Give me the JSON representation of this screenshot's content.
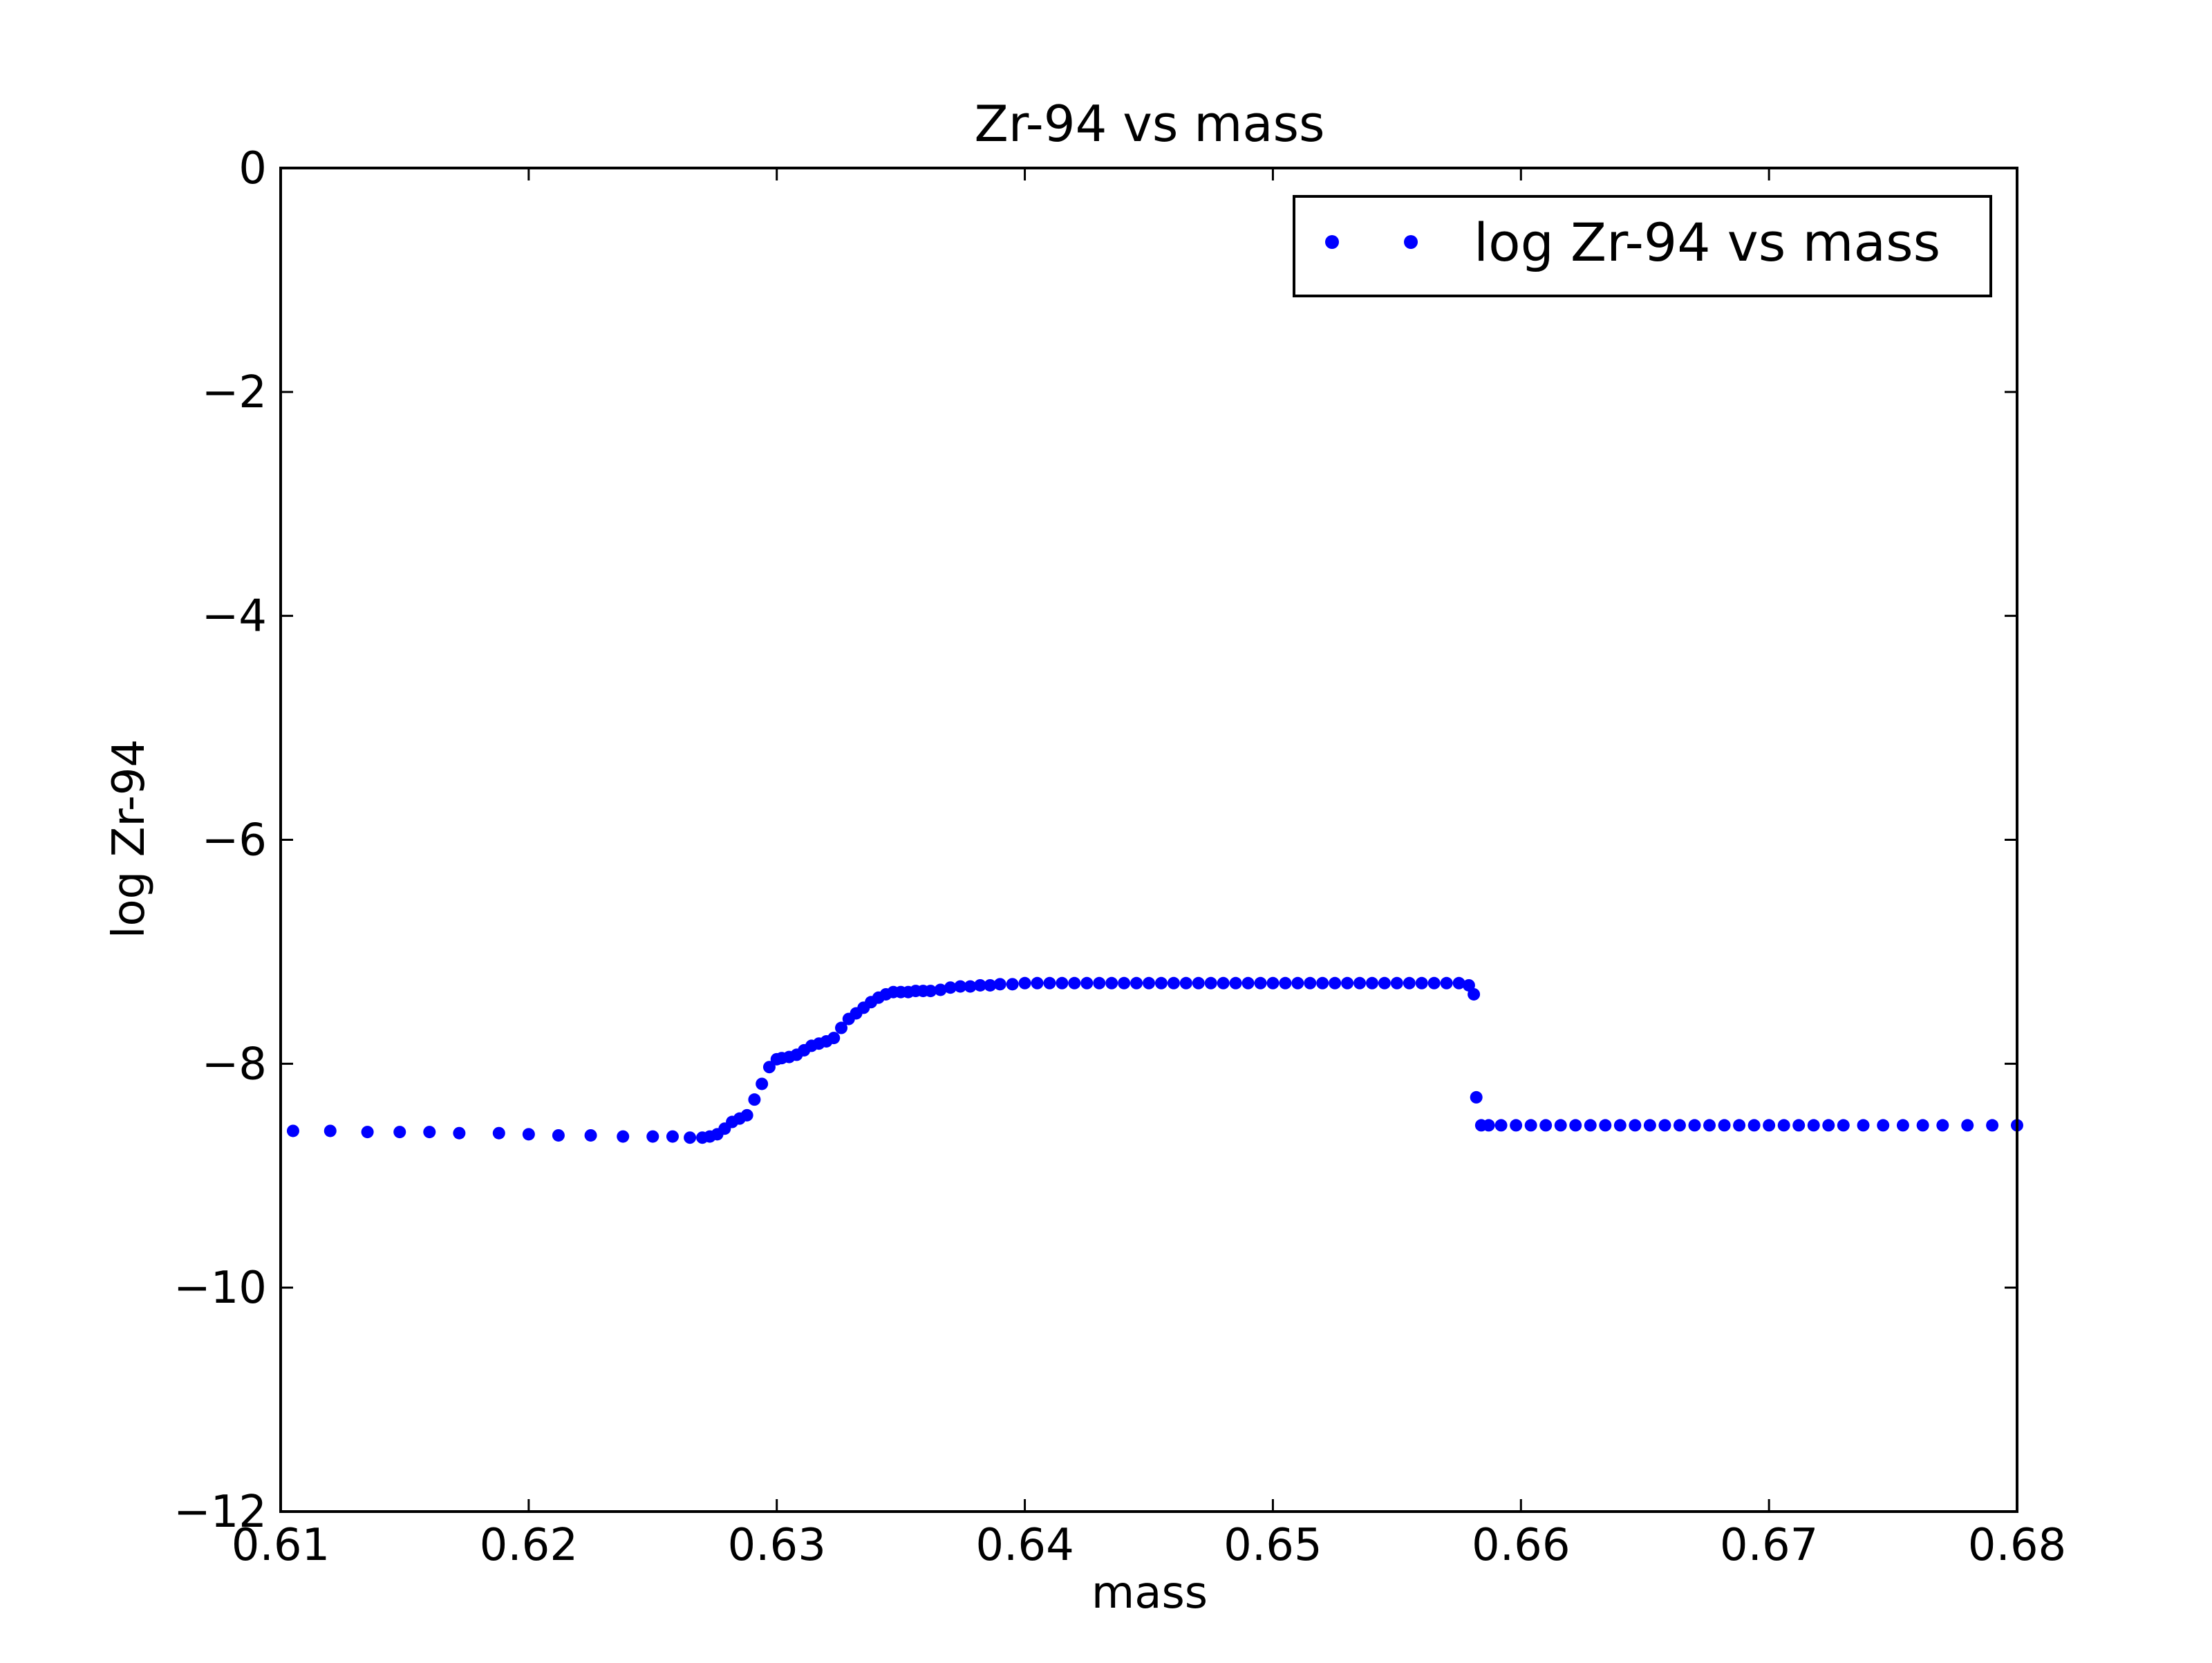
{
  "chart_data": {
    "type": "scatter",
    "title": "Zr-94 vs mass",
    "xlabel": "mass",
    "ylabel": "log Zr-94",
    "xlim": [
      0.61,
      0.68
    ],
    "ylim": [
      -12,
      0
    ],
    "x_ticks": [
      "0.61",
      "0.62",
      "0.63",
      "0.64",
      "0.65",
      "0.66",
      "0.67",
      "0.68"
    ],
    "y_ticks": [
      "0",
      "−2",
      "−4",
      "−6",
      "−8",
      "−10",
      "−12"
    ],
    "grid": false,
    "legend_position": "top-right",
    "marker_color": "#0000ff",
    "series": [
      {
        "name": "log Zr-94 vs mass",
        "x": [
          0.6105,
          0.612,
          0.6135,
          0.6148,
          0.616,
          0.6172,
          0.6188,
          0.62,
          0.6212,
          0.6225,
          0.6238,
          0.625,
          0.6258,
          0.6265,
          0.627,
          0.6273,
          0.6276,
          0.6279,
          0.6282,
          0.6285,
          0.6288,
          0.6291,
          0.6294,
          0.6297,
          0.63,
          0.6302,
          0.6305,
          0.6308,
          0.6311,
          0.6314,
          0.6317,
          0.632,
          0.6323,
          0.6326,
          0.6329,
          0.6332,
          0.6335,
          0.6338,
          0.6341,
          0.6344,
          0.6347,
          0.635,
          0.6353,
          0.6356,
          0.6359,
          0.6362,
          0.6366,
          0.637,
          0.6374,
          0.6378,
          0.6382,
          0.6386,
          0.639,
          0.6395,
          0.64,
          0.6405,
          0.641,
          0.6415,
          0.642,
          0.6425,
          0.643,
          0.6435,
          0.644,
          0.6445,
          0.645,
          0.6455,
          0.646,
          0.6465,
          0.647,
          0.6475,
          0.648,
          0.6485,
          0.649,
          0.6495,
          0.65,
          0.6505,
          0.651,
          0.6515,
          0.652,
          0.6525,
          0.653,
          0.6535,
          0.654,
          0.6545,
          0.655,
          0.6555,
          0.656,
          0.6565,
          0.657,
          0.6575,
          0.6579,
          0.6581,
          0.6582,
          0.6584,
          0.6587,
          0.6592,
          0.6598,
          0.6604,
          0.661,
          0.6616,
          0.6622,
          0.6628,
          0.6634,
          0.664,
          0.6646,
          0.6652,
          0.6658,
          0.6664,
          0.667,
          0.6676,
          0.6682,
          0.6688,
          0.6694,
          0.67,
          0.6706,
          0.6712,
          0.6718,
          0.6724,
          0.673,
          0.6738,
          0.6746,
          0.6754,
          0.6762,
          0.677,
          0.678,
          0.679,
          0.68
        ],
        "y": [
          -8.6,
          -8.6,
          -8.61,
          -8.61,
          -8.61,
          -8.62,
          -8.62,
          -8.63,
          -8.64,
          -8.64,
          -8.65,
          -8.65,
          -8.65,
          -8.66,
          -8.66,
          -8.65,
          -8.63,
          -8.58,
          -8.52,
          -8.49,
          -8.46,
          -8.32,
          -8.18,
          -8.03,
          -7.96,
          -7.95,
          -7.94,
          -7.92,
          -7.88,
          -7.84,
          -7.82,
          -7.8,
          -7.77,
          -7.68,
          -7.6,
          -7.55,
          -7.5,
          -7.45,
          -7.41,
          -7.38,
          -7.36,
          -7.36,
          -7.36,
          -7.35,
          -7.35,
          -7.35,
          -7.34,
          -7.32,
          -7.31,
          -7.31,
          -7.3,
          -7.3,
          -7.29,
          -7.29,
          -7.28,
          -7.28,
          -7.28,
          -7.28,
          -7.28,
          -7.28,
          -7.28,
          -7.28,
          -7.28,
          -7.28,
          -7.28,
          -7.28,
          -7.28,
          -7.28,
          -7.28,
          -7.28,
          -7.28,
          -7.28,
          -7.28,
          -7.28,
          -7.28,
          -7.28,
          -7.28,
          -7.28,
          -7.28,
          -7.28,
          -7.28,
          -7.28,
          -7.28,
          -7.28,
          -7.28,
          -7.28,
          -7.28,
          -7.28,
          -7.28,
          -7.28,
          -7.3,
          -7.38,
          -8.3,
          -8.55,
          -8.55,
          -8.55,
          -8.55,
          -8.55,
          -8.55,
          -8.55,
          -8.55,
          -8.55,
          -8.55,
          -8.55,
          -8.55,
          -8.55,
          -8.55,
          -8.55,
          -8.55,
          -8.55,
          -8.55,
          -8.55,
          -8.55,
          -8.55,
          -8.55,
          -8.55,
          -8.55,
          -8.55,
          -8.55,
          -8.55,
          -8.55,
          -8.55,
          -8.55,
          -8.55,
          -8.55,
          -8.55,
          -8.55
        ]
      }
    ]
  }
}
